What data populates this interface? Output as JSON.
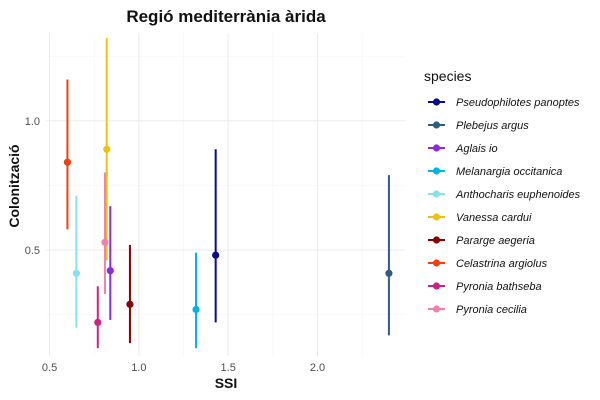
{
  "chart_data": {
    "type": "scatter",
    "title": "Regió mediterrània àrida",
    "xlabel": "SSI",
    "ylabel": "Colonització",
    "xlim": [
      0.48,
      2.49
    ],
    "ylim": [
      0.09,
      1.34
    ],
    "x_ticks": [
      0.5,
      1.0,
      1.5,
      2.0
    ],
    "x_tick_labels": [
      "0.5",
      "1.0",
      "1.5",
      "2.0"
    ],
    "y_ticks": [
      0.5,
      1.0
    ],
    "y_tick_labels": [
      "0.5",
      "1.0"
    ],
    "grid": true,
    "legend_title": "species",
    "legend_position": "right",
    "series": [
      {
        "name": "Pseudophilotes panoptes",
        "color": "#0a0a8c",
        "x": 1.43,
        "y": 0.48,
        "ymin": 0.22,
        "ymax": 0.89
      },
      {
        "name": "Plebejus argus",
        "color": "#2e5c82",
        "x": 2.4,
        "y": 0.41,
        "ymin": 0.17,
        "ymax": 0.79
      },
      {
        "name": "Aglais io",
        "color": "#8a2be2",
        "x": 0.84,
        "y": 0.42,
        "ymin": 0.23,
        "ymax": 0.67
      },
      {
        "name": "Melanargia occitanica",
        "color": "#00b4e6",
        "x": 1.32,
        "y": 0.27,
        "ymin": 0.12,
        "ymax": 0.49
      },
      {
        "name": "Anthocharis euphenoides",
        "color": "#87e0ee",
        "x": 0.65,
        "y": 0.41,
        "ymin": 0.2,
        "ymax": 0.71
      },
      {
        "name": "Vanessa cardui",
        "color": "#f0c010",
        "x": 0.82,
        "y": 0.89,
        "ymin": 0.46,
        "ymax": 1.32
      },
      {
        "name": "Pararge aegeria",
        "color": "#8b0000",
        "x": 0.95,
        "y": 0.29,
        "ymin": 0.14,
        "ymax": 0.52
      },
      {
        "name": "Celastrina argiolus",
        "color": "#f04010",
        "x": 0.6,
        "y": 0.84,
        "ymin": 0.58,
        "ymax": 1.16
      },
      {
        "name": "Pyronia bathseba",
        "color": "#cc2288",
        "x": 0.77,
        "y": 0.22,
        "ymin": 0.12,
        "ymax": 0.36
      },
      {
        "name": "Pyronia cecilia",
        "color": "#f080b0",
        "x": 0.81,
        "y": 0.53,
        "ymin": 0.33,
        "ymax": 0.8
      }
    ]
  }
}
